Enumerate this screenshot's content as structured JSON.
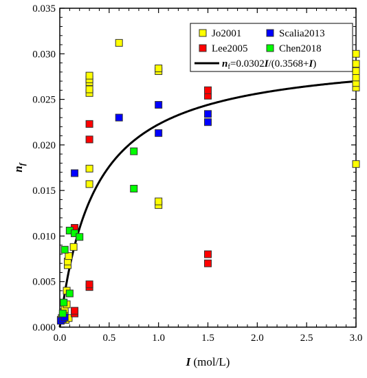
{
  "chart_data": {
    "type": "scatter",
    "title": "",
    "xlabel": {
      "symbol": "I",
      "unit": " (mol/L)"
    },
    "ylabel": {
      "symbol": "n",
      "sub": "f"
    },
    "xlim": [
      0,
      3.0
    ],
    "ylim": [
      0,
      0.035
    ],
    "x_ticks": [
      0.0,
      0.5,
      1.0,
      1.5,
      2.0,
      2.5,
      3.0
    ],
    "x_tick_labels": [
      "0.0",
      "0.5",
      "1.0",
      "1.5",
      "2.0",
      "2.5",
      "3.0"
    ],
    "y_ticks": [
      0.0,
      0.005,
      0.01,
      0.015,
      0.02,
      0.025,
      0.03,
      0.035
    ],
    "y_tick_labels": [
      "0.000",
      "0.005",
      "0.010",
      "0.015",
      "0.020",
      "0.025",
      "0.030",
      "0.035"
    ],
    "grid": false,
    "legend_position": "top-right",
    "series": [
      {
        "name": "Jo2001",
        "color": "#ffff00",
        "points": [
          [
            0.01,
            0.0008
          ],
          [
            0.02,
            0.001
          ],
          [
            0.03,
            0.0012
          ],
          [
            0.05,
            0.0015
          ],
          [
            0.05,
            0.002
          ],
          [
            0.06,
            0.0008
          ],
          [
            0.07,
            0.0025
          ],
          [
            0.07,
            0.004
          ],
          [
            0.08,
            0.0068
          ],
          [
            0.08,
            0.0072
          ],
          [
            0.09,
            0.0078
          ],
          [
            0.09,
            0.001
          ],
          [
            0.14,
            0.0088
          ],
          [
            0.3,
            0.0157
          ],
          [
            0.3,
            0.0174
          ],
          [
            0.3,
            0.0257
          ],
          [
            0.3,
            0.0261
          ],
          [
            0.3,
            0.0269
          ],
          [
            0.3,
            0.0272
          ],
          [
            0.3,
            0.0276
          ],
          [
            0.6,
            0.0312
          ],
          [
            1.0,
            0.0134
          ],
          [
            1.0,
            0.0138
          ],
          [
            1.0,
            0.0281
          ],
          [
            1.0,
            0.0284
          ],
          [
            3.0,
            0.0179
          ],
          [
            3.0,
            0.0263
          ],
          [
            3.0,
            0.0268
          ],
          [
            3.0,
            0.0274
          ],
          [
            3.0,
            0.0281
          ],
          [
            3.0,
            0.0289
          ],
          [
            3.0,
            0.03
          ]
        ]
      },
      {
        "name": "Scalia2013",
        "color": "#0000ff",
        "points": [
          [
            0.01,
            0.0007
          ],
          [
            0.03,
            0.0009
          ],
          [
            0.05,
            0.0011
          ],
          [
            0.15,
            0.0169
          ],
          [
            0.6,
            0.023
          ],
          [
            1.0,
            0.0213
          ],
          [
            1.0,
            0.0244
          ],
          [
            1.5,
            0.0225
          ],
          [
            1.5,
            0.0234
          ]
        ]
      },
      {
        "name": "Lee2005",
        "color": "#ff0000",
        "points": [
          [
            0.15,
            0.0015
          ],
          [
            0.15,
            0.0018
          ],
          [
            0.15,
            0.0109
          ],
          [
            0.3,
            0.0044
          ],
          [
            0.3,
            0.0047
          ],
          [
            0.3,
            0.0206
          ],
          [
            0.3,
            0.0223
          ],
          [
            1.5,
            0.007
          ],
          [
            1.5,
            0.008
          ],
          [
            1.5,
            0.0254
          ],
          [
            1.5,
            0.026
          ]
        ]
      },
      {
        "name": "Chen2018",
        "color": "#00ff00",
        "points": [
          [
            0.03,
            0.0015
          ],
          [
            0.04,
            0.0027
          ],
          [
            0.05,
            0.0085
          ],
          [
            0.1,
            0.0037
          ],
          [
            0.1,
            0.0106
          ],
          [
            0.15,
            0.0103
          ],
          [
            0.2,
            0.0099
          ],
          [
            0.75,
            0.0152
          ],
          [
            0.75,
            0.0193
          ]
        ]
      }
    ],
    "fit_curve": {
      "label_parts": [
        {
          "t": "n",
          "style": "bi"
        },
        {
          "t": "f",
          "style": "sub"
        },
        {
          "t": "=0.0302",
          "style": "n"
        },
        {
          "t": "I",
          "style": "bi"
        },
        {
          "t": "/(0.3568+",
          "style": "n"
        },
        {
          "t": "I",
          "style": "bi"
        },
        {
          "t": ")",
          "style": "n"
        }
      ],
      "a": 0.0302,
      "b": 0.3568,
      "color": "#000000"
    }
  }
}
